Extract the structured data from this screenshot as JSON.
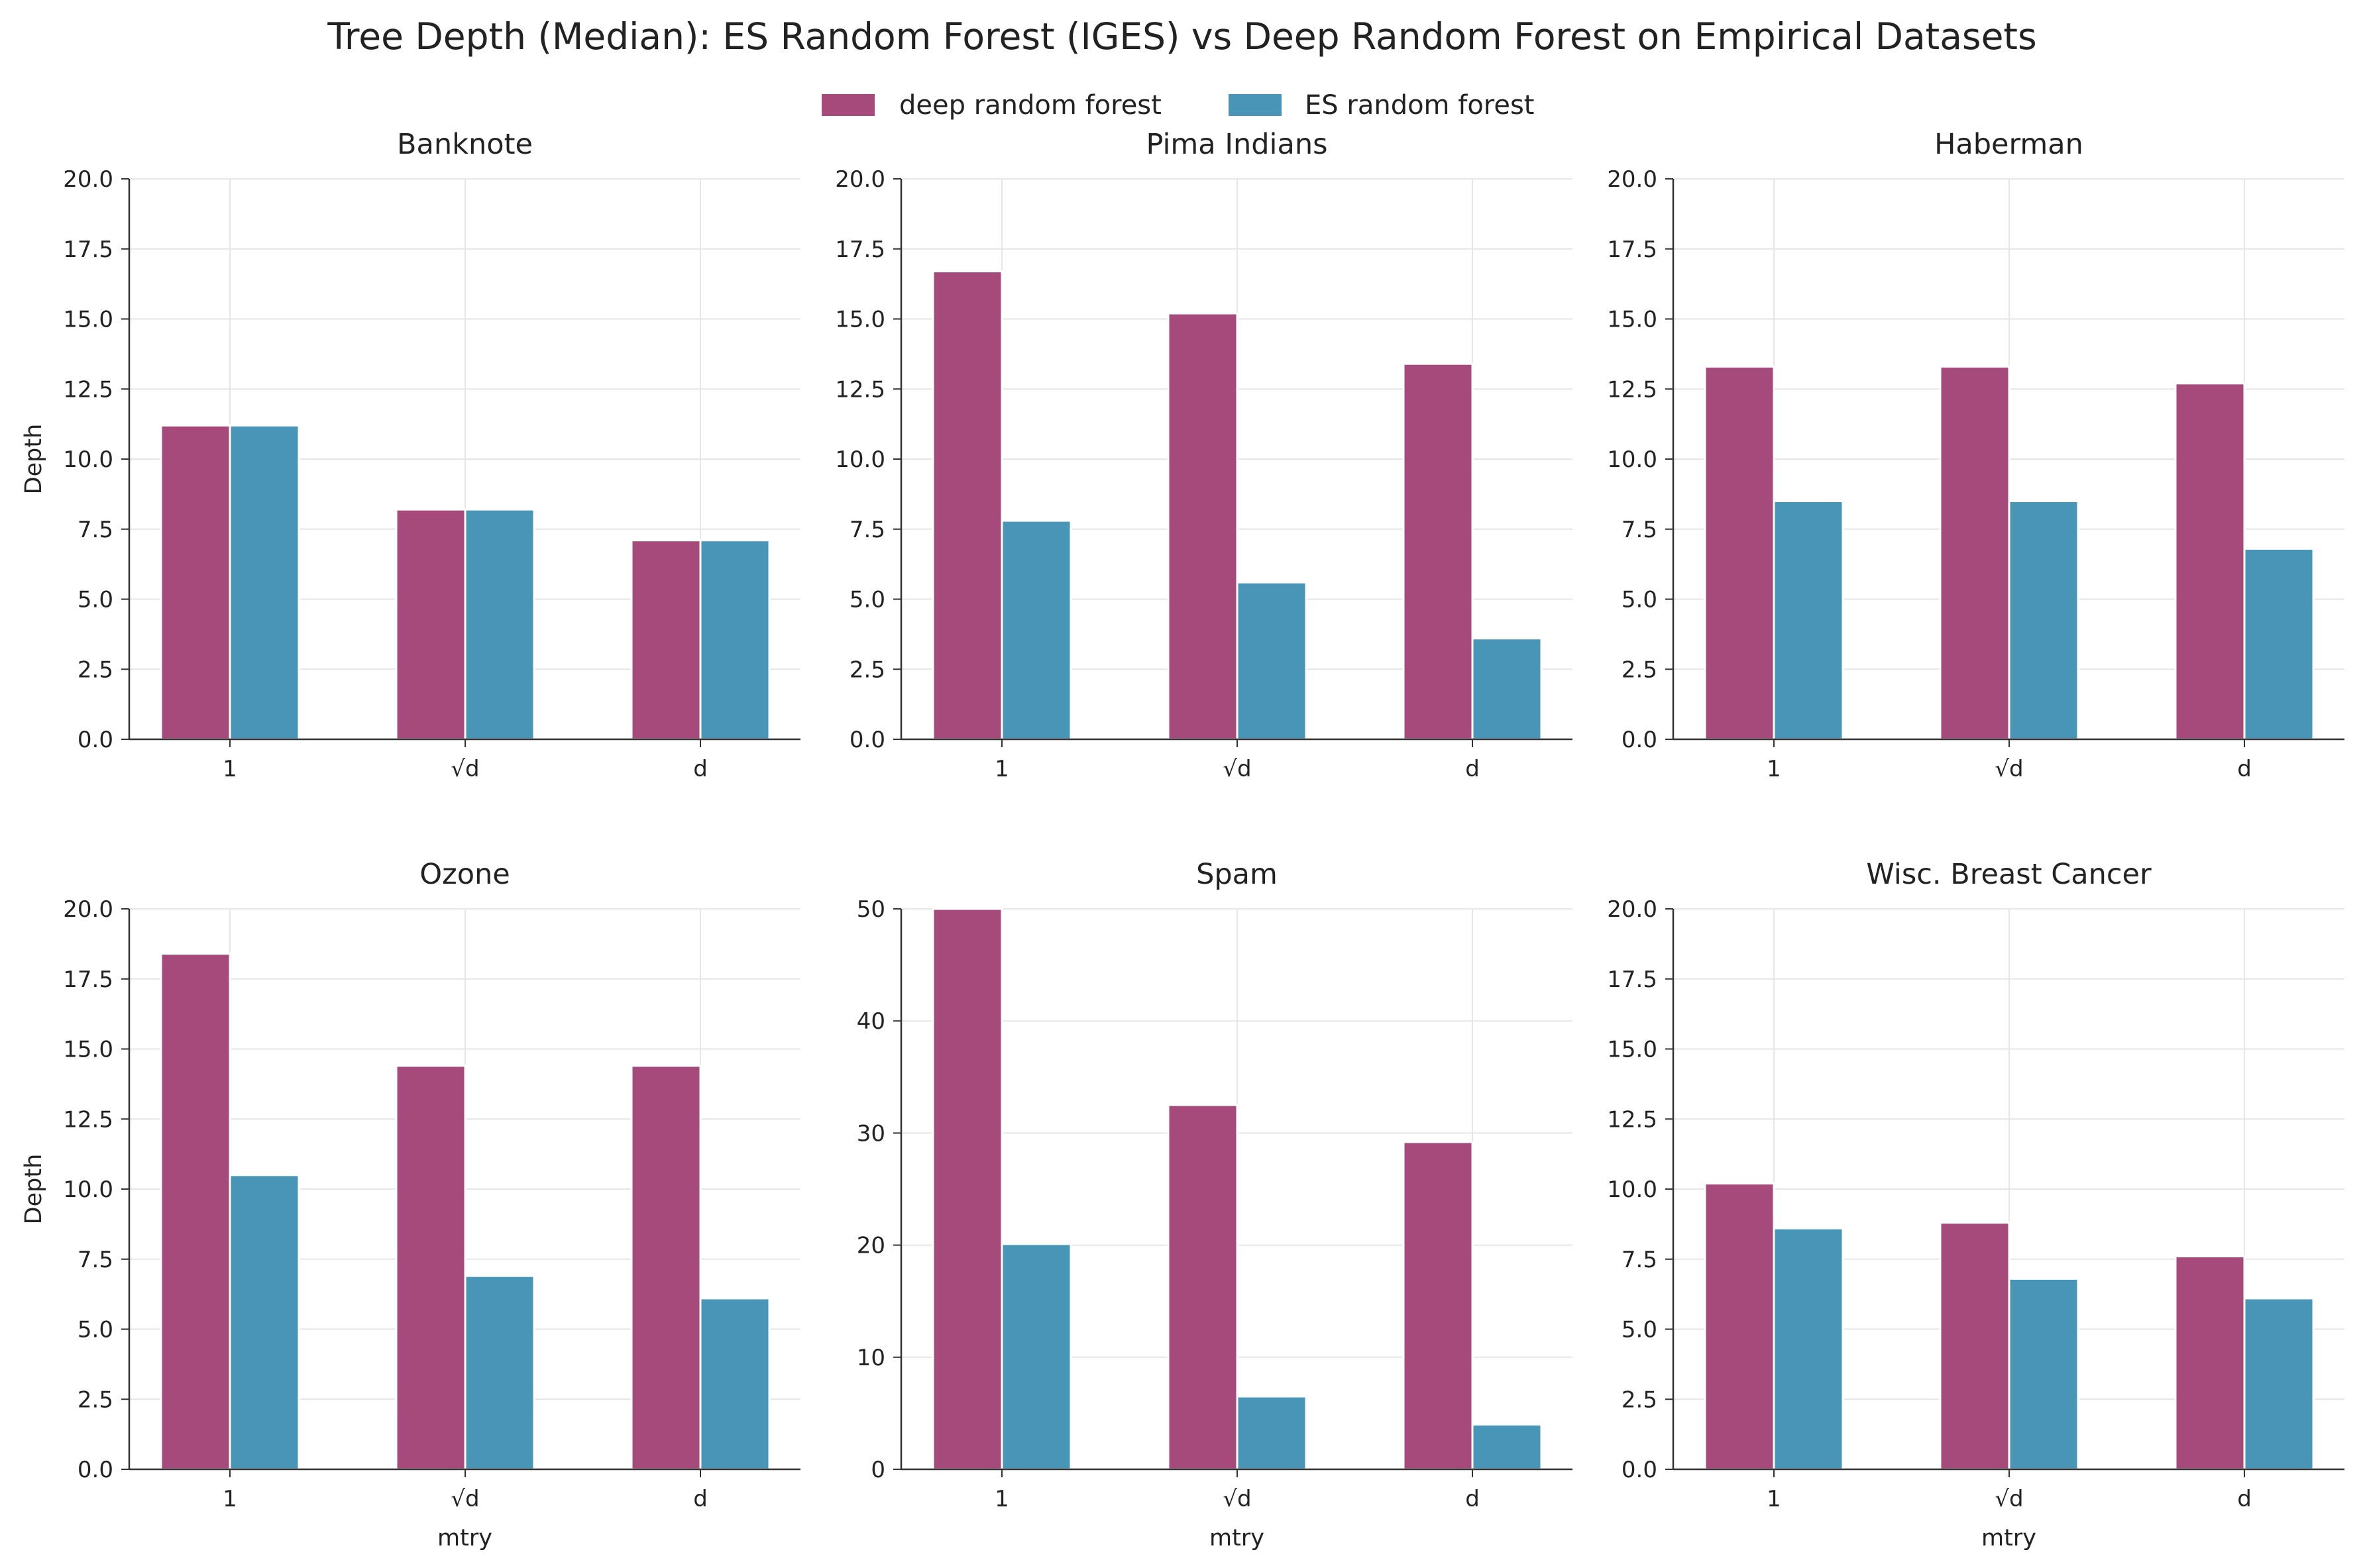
{
  "figure_title": "Tree Depth (Median): ES Random Forest (IGES) vs Deep Random Forest on Empirical Datasets",
  "legend": [
    {
      "label": "deep random forest",
      "color": "#a64a7c"
    },
    {
      "label": "ES random forest",
      "color": "#4995b8"
    }
  ],
  "chart_data": [
    {
      "type": "bar",
      "title": "Banknote",
      "categories": [
        "1",
        "√d",
        "d"
      ],
      "ylim": [
        0,
        20
      ],
      "yticks": [
        "0.0",
        "2.5",
        "5.0",
        "7.5",
        "10.0",
        "12.5",
        "15.0",
        "17.5",
        "20.0"
      ],
      "ylabel": "Depth",
      "xlabel": "",
      "series": [
        {
          "name": "deep random forest",
          "values": [
            11.2,
            8.2,
            7.1
          ]
        },
        {
          "name": "ES random forest",
          "values": [
            11.2,
            8.2,
            7.1
          ]
        }
      ]
    },
    {
      "type": "bar",
      "title": "Pima Indians",
      "categories": [
        "1",
        "√d",
        "d"
      ],
      "ylim": [
        0,
        20
      ],
      "yticks": [
        "0.0",
        "2.5",
        "5.0",
        "7.5",
        "10.0",
        "12.5",
        "15.0",
        "17.5",
        "20.0"
      ],
      "ylabel": "",
      "xlabel": "",
      "series": [
        {
          "name": "deep random forest",
          "values": [
            16.7,
            15.2,
            13.4
          ]
        },
        {
          "name": "ES random forest",
          "values": [
            7.8,
            5.6,
            3.6
          ]
        }
      ]
    },
    {
      "type": "bar",
      "title": "Haberman",
      "categories": [
        "1",
        "√d",
        "d"
      ],
      "ylim": [
        0,
        20
      ],
      "yticks": [
        "0.0",
        "2.5",
        "5.0",
        "7.5",
        "10.0",
        "12.5",
        "15.0",
        "17.5",
        "20.0"
      ],
      "ylabel": "",
      "xlabel": "",
      "series": [
        {
          "name": "deep random forest",
          "values": [
            13.3,
            13.3,
            12.7
          ]
        },
        {
          "name": "ES random forest",
          "values": [
            8.5,
            8.5,
            6.8
          ]
        }
      ]
    },
    {
      "type": "bar",
      "title": "Ozone",
      "categories": [
        "1",
        "√d",
        "d"
      ],
      "ylim": [
        0,
        20
      ],
      "yticks": [
        "0.0",
        "2.5",
        "5.0",
        "7.5",
        "10.0",
        "12.5",
        "15.0",
        "17.5",
        "20.0"
      ],
      "ylabel": "Depth",
      "xlabel": "mtry",
      "series": [
        {
          "name": "deep random forest",
          "values": [
            18.4,
            14.4,
            14.4
          ]
        },
        {
          "name": "ES random forest",
          "values": [
            10.5,
            6.9,
            6.1
          ]
        }
      ]
    },
    {
      "type": "bar",
      "title": "Spam",
      "categories": [
        "1",
        "√d",
        "d"
      ],
      "ylim": [
        0,
        50
      ],
      "yticks": [
        "0",
        "10",
        "20",
        "30",
        "40",
        "50"
      ],
      "ylabel": "",
      "xlabel": "mtry",
      "series": [
        {
          "name": "deep random forest",
          "values": [
            50.0,
            32.5,
            29.2
          ]
        },
        {
          "name": "ES random forest",
          "values": [
            20.1,
            6.5,
            4.0
          ]
        }
      ]
    },
    {
      "type": "bar",
      "title": "Wisc. Breast Cancer",
      "categories": [
        "1",
        "√d",
        "d"
      ],
      "ylim": [
        0,
        20
      ],
      "yticks": [
        "0.0",
        "2.5",
        "5.0",
        "7.5",
        "10.0",
        "12.5",
        "15.0",
        "17.5",
        "20.0"
      ],
      "ylabel": "",
      "xlabel": "mtry",
      "series": [
        {
          "name": "deep random forest",
          "values": [
            10.2,
            8.8,
            7.6
          ]
        },
        {
          "name": "ES random forest",
          "values": [
            8.6,
            6.8,
            6.1
          ]
        }
      ]
    }
  ]
}
